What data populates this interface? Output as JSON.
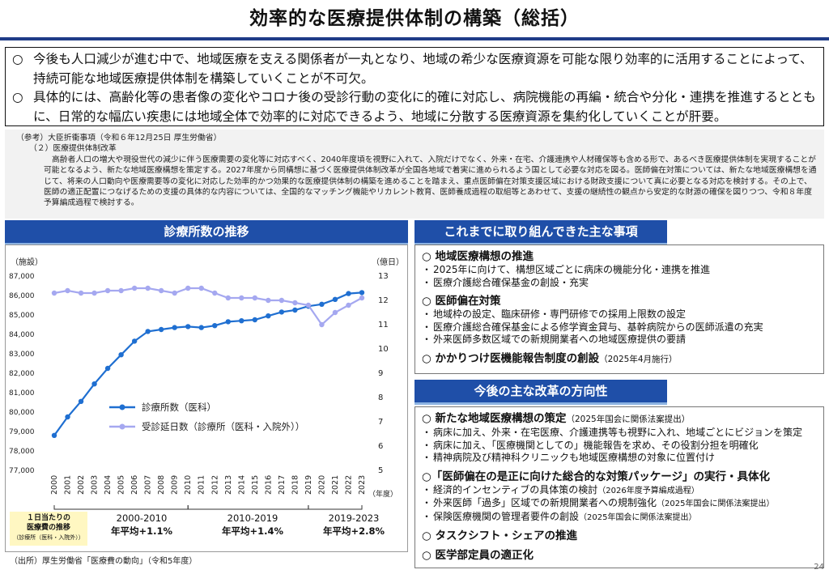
{
  "page": {
    "title": "効率的な医療提供体制の構築（総括）",
    "page_number": "24"
  },
  "intro": [
    {
      "mark": "○",
      "text": "今後も人口減少が進む中で、地域医療を支える関係者が一丸となり、地域の希少な医療資源を可能な限り効率的に活用することによって、持続可能な地域医療提供体制を構築していくことが不可欠。"
    },
    {
      "mark": "○",
      "text": "具体的には、高齢化等の患者像の変化やコロナ後の受診行動の変化に的確に対応し、病院機能の再編・統合や分化・連携を推進するとともに、日常的な幅広い疾患には地域全体で効率的に対応できるよう、地域に分散する医療資源を集約化していくことが肝要。"
    }
  ],
  "reference": {
    "heading": "（参考）大臣折衝事項（令和６年12月25日 厚生労働省）",
    "subheading": "（２）医療提供体制改革",
    "body": "高齢者人口の増大や現役世代の減少に伴う医療需要の変化等に対応すべく、2040年度頃を視野に入れて、入院だけでなく、外来・在宅、介護連携や人材確保等も含める形で、あるべき医療提供体制を実現することが可能となるよう、新たな地域医療構想を策定する。2027年度から同構想に基づく医療提供体制改革が全国各地域で着実に進められるよう国として必要な対応を図る。医師偏在対策については、新たな地域医療構想を通じて、将来の人口動向や医療需要等の変化に対応した効率的かつ効果的な医療提供体制の構築を進めることを踏まえ、重点医師偏在対策支援区域における財政支援について真に必要となる対応を検討する。その上で、医師の適正配置につなげるための支援の具体的な内容については、全国的なマッチング機能やリカレント教育、医師養成過程の取組等とあわせて、支援の継続性の観点から安定的な財源の確保を図りつつ、令和８年度予算編成過程で検討する。"
  },
  "chart_section": {
    "header": "診療所数の推移",
    "growth_legend": {
      "line1": "１日当たりの",
      "line2": "医療費の推移",
      "line3": "（診療所（医科・入院外））"
    },
    "growth": [
      {
        "period": "2000-2010",
        "rate": "年平均+1.1%"
      },
      {
        "period": "2010-2019",
        "rate": "年平均+1.4%"
      },
      {
        "period": "2019-2023",
        "rate": "年平均+2.8%"
      }
    ],
    "source": "（出所）厚生労働省「医療費の動向」（令和5年度）"
  },
  "chart_data": {
    "type": "line",
    "x": [
      "2000",
      "2001",
      "2002",
      "2003",
      "2004",
      "2005",
      "2006",
      "2007",
      "2008",
      "2009",
      "2010",
      "2011",
      "2012",
      "2013",
      "2014",
      "2015",
      "2016",
      "2017",
      "2018",
      "2019",
      "2020",
      "2021",
      "2022",
      "2023"
    ],
    "x_unit": "（年度）",
    "y_left": {
      "label": "（施設）",
      "ticks": [
        "77,000",
        "78,000",
        "79,000",
        "80,000",
        "81,000",
        "82,000",
        "83,000",
        "84,000",
        "85,000",
        "86,000",
        "87,000"
      ],
      "range": [
        77000,
        87000
      ]
    },
    "y_right": {
      "label": "（億日）",
      "ticks": [
        "5",
        "6",
        "7",
        "8",
        "9",
        "10",
        "11",
        "12",
        "13"
      ],
      "range": [
        5,
        13
      ]
    },
    "series": [
      {
        "name": "診療所数（医科）",
        "axis": "left",
        "color": "#1f6fd1",
        "values": [
          78800,
          79750,
          80550,
          81450,
          82250,
          82950,
          83650,
          84150,
          84250,
          84350,
          84400,
          84350,
          84450,
          84650,
          84700,
          84750,
          84950,
          85150,
          85250,
          85450,
          85550,
          85800,
          86100,
          86150
        ]
      },
      {
        "name": "受診延日数（診療所（医科・入院外））",
        "axis": "right",
        "color": "#a5a8f0",
        "values": [
          12.3,
          12.4,
          12.3,
          12.3,
          12.4,
          12.4,
          12.5,
          12.5,
          12.4,
          12.3,
          12.5,
          12.5,
          12.3,
          12.1,
          12.1,
          12.1,
          12.0,
          12.0,
          11.9,
          11.8,
          11.0,
          11.5,
          11.8,
          12.1
        ]
      }
    ],
    "legend_position": "left-middle"
  },
  "achievements": {
    "header": "これまでに取り組んできた主な事項",
    "sections": [
      {
        "title": "○ 地域医療構想の推進",
        "items": [
          "2025年に向けて、構想区域ごとに病床の機能分化・連携を推進",
          "医療介護総合確保基金の創設・充実"
        ]
      },
      {
        "title": "○ 医師偏在対策",
        "items": [
          "地域枠の設定、臨床研修・専門研修での採用上限数の設定",
          "医療介護総合確保基金による修学資金貸与、基幹病院からの医師派遣の充実",
          "外来医師多数区域での新規開業者への地域医療提供の要請"
        ]
      },
      {
        "title": "○ かかりつけ医機能報告制度の創設",
        "note": "（2025年4月施行）",
        "items": []
      }
    ]
  },
  "reforms": {
    "header": "今後の主な改革の方向性",
    "sections": [
      {
        "title": "○ 新たな地域医療構想の策定",
        "note": "（2025年国会に関係法案提出）",
        "items": [
          {
            "text": "病床に加え、外来・在宅医療、介護連携等も視野に入れ、地域ごとにビジョンを策定",
            "note": ""
          },
          {
            "text": "病床に加え、「医療機関としての」機能報告を求め、その役割分担を明確化",
            "note": ""
          },
          {
            "text": "精神病院及び精神科クリニックも地域医療構想の対象に位置付け",
            "note": ""
          }
        ]
      },
      {
        "title": "○「医師偏在の是正に向けた総合的な対策パッケージ」の実行・具体化",
        "note": "",
        "items": [
          {
            "text": "経済的インセンティブの具体策の検討",
            "note": "（2026年度予算編成過程）"
          },
          {
            "text": "外来医師「過多」区域での新規開業者への規制強化",
            "note": "（2025年国会に関係法案提出）"
          },
          {
            "text": "保険医療機関の管理者要件の創設",
            "note": "（2025年国会に関係法案提出）"
          }
        ]
      },
      {
        "title": "○ タスクシフト・シェアの推進",
        "note": "",
        "items": []
      },
      {
        "title": "○ 医学部定員の適正化",
        "note": "",
        "items": []
      }
    ]
  }
}
